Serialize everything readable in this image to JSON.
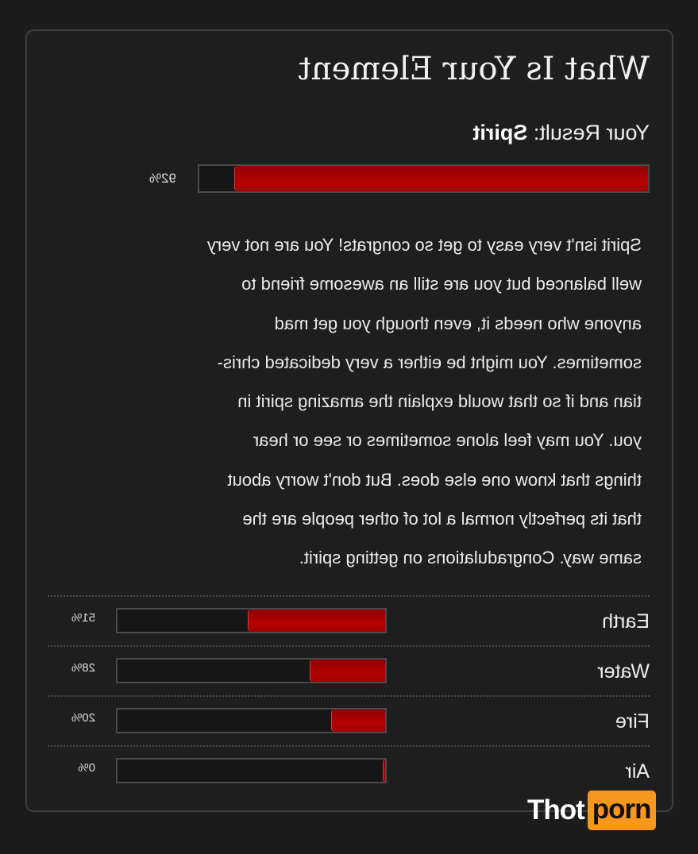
{
  "quiz": {
    "title": "What Is Your Element",
    "result_label": "Your Result:",
    "result_value": "Spirit",
    "result_percent": 92,
    "result_percent_label": "92%",
    "description_lines": [
      "Spirit isn't very easy to get so congrats! You are not very",
      "well balanced but you are still an awesome friend to",
      "anyone who needs it, even though you get mad",
      "sometimes. You might be either a very dedicated chris-",
      "tian and if so that would explain the amazing spirit in",
      "you. You may feel alone sometimes or see or hear",
      "things that know one else does. But don't worry about",
      "that its perfectly normal a lot of other people are the",
      "same way. Congradulations on getting spirit."
    ],
    "others": [
      {
        "label": "Earth",
        "percent": 51,
        "percent_label": "51%"
      },
      {
        "label": "Water",
        "percent": 28,
        "percent_label": "28%"
      },
      {
        "label": "Fire",
        "percent": 20,
        "percent_label": "20%"
      },
      {
        "label": "Air",
        "percent": 0,
        "percent_label": "0%"
      }
    ],
    "mirrored": true,
    "bar_color": "#b50000"
  },
  "watermark": {
    "text1": "Thot",
    "text2": "porn",
    "accent": "#f7971d"
  }
}
